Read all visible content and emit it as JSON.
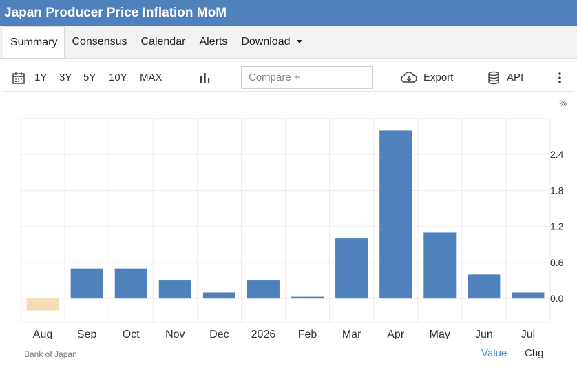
{
  "header": {
    "title": "Japan Producer Price Inflation MoM"
  },
  "tabs": [
    {
      "label": "Summary"
    },
    {
      "label": "Consensus"
    },
    {
      "label": "Calendar"
    },
    {
      "label": "Alerts"
    },
    {
      "label": "Download"
    }
  ],
  "toolbar": {
    "ranges": [
      "1Y",
      "3Y",
      "5Y",
      "10Y",
      "MAX"
    ],
    "compare_placeholder": "Compare +",
    "export_label": "Export",
    "api_label": "API",
    "icons": [
      "calendar-icon",
      "bar-chart-icon",
      "cloud-download-icon",
      "database-icon",
      "more-vertical-icon"
    ]
  },
  "chart": {
    "unit": "%",
    "source": "Bank of Japan",
    "mode_value": "Value",
    "mode_chg": "Chg"
  },
  "colors": {
    "header": "#4f81bd",
    "bar": "#4f81bd",
    "bar_negative": "#f4dcb4",
    "toggle_active": "#3b8fd6"
  },
  "chart_data": {
    "type": "bar",
    "categories": [
      "Aug",
      "Sep",
      "Oct",
      "Nov",
      "Dec",
      "2026",
      "Feb",
      "Mar",
      "Apr",
      "May",
      "Jun",
      "Jul"
    ],
    "values": [
      -0.2,
      0.5,
      0.5,
      0.3,
      0.1,
      0.3,
      0.03,
      1.0,
      2.8,
      1.1,
      0.4,
      0.1
    ],
    "yticks": [
      0.0,
      0.6,
      1.2,
      1.8,
      2.4
    ],
    "ylim": [
      -0.4,
      3.0
    ],
    "ylabel": "%",
    "grid": true
  }
}
